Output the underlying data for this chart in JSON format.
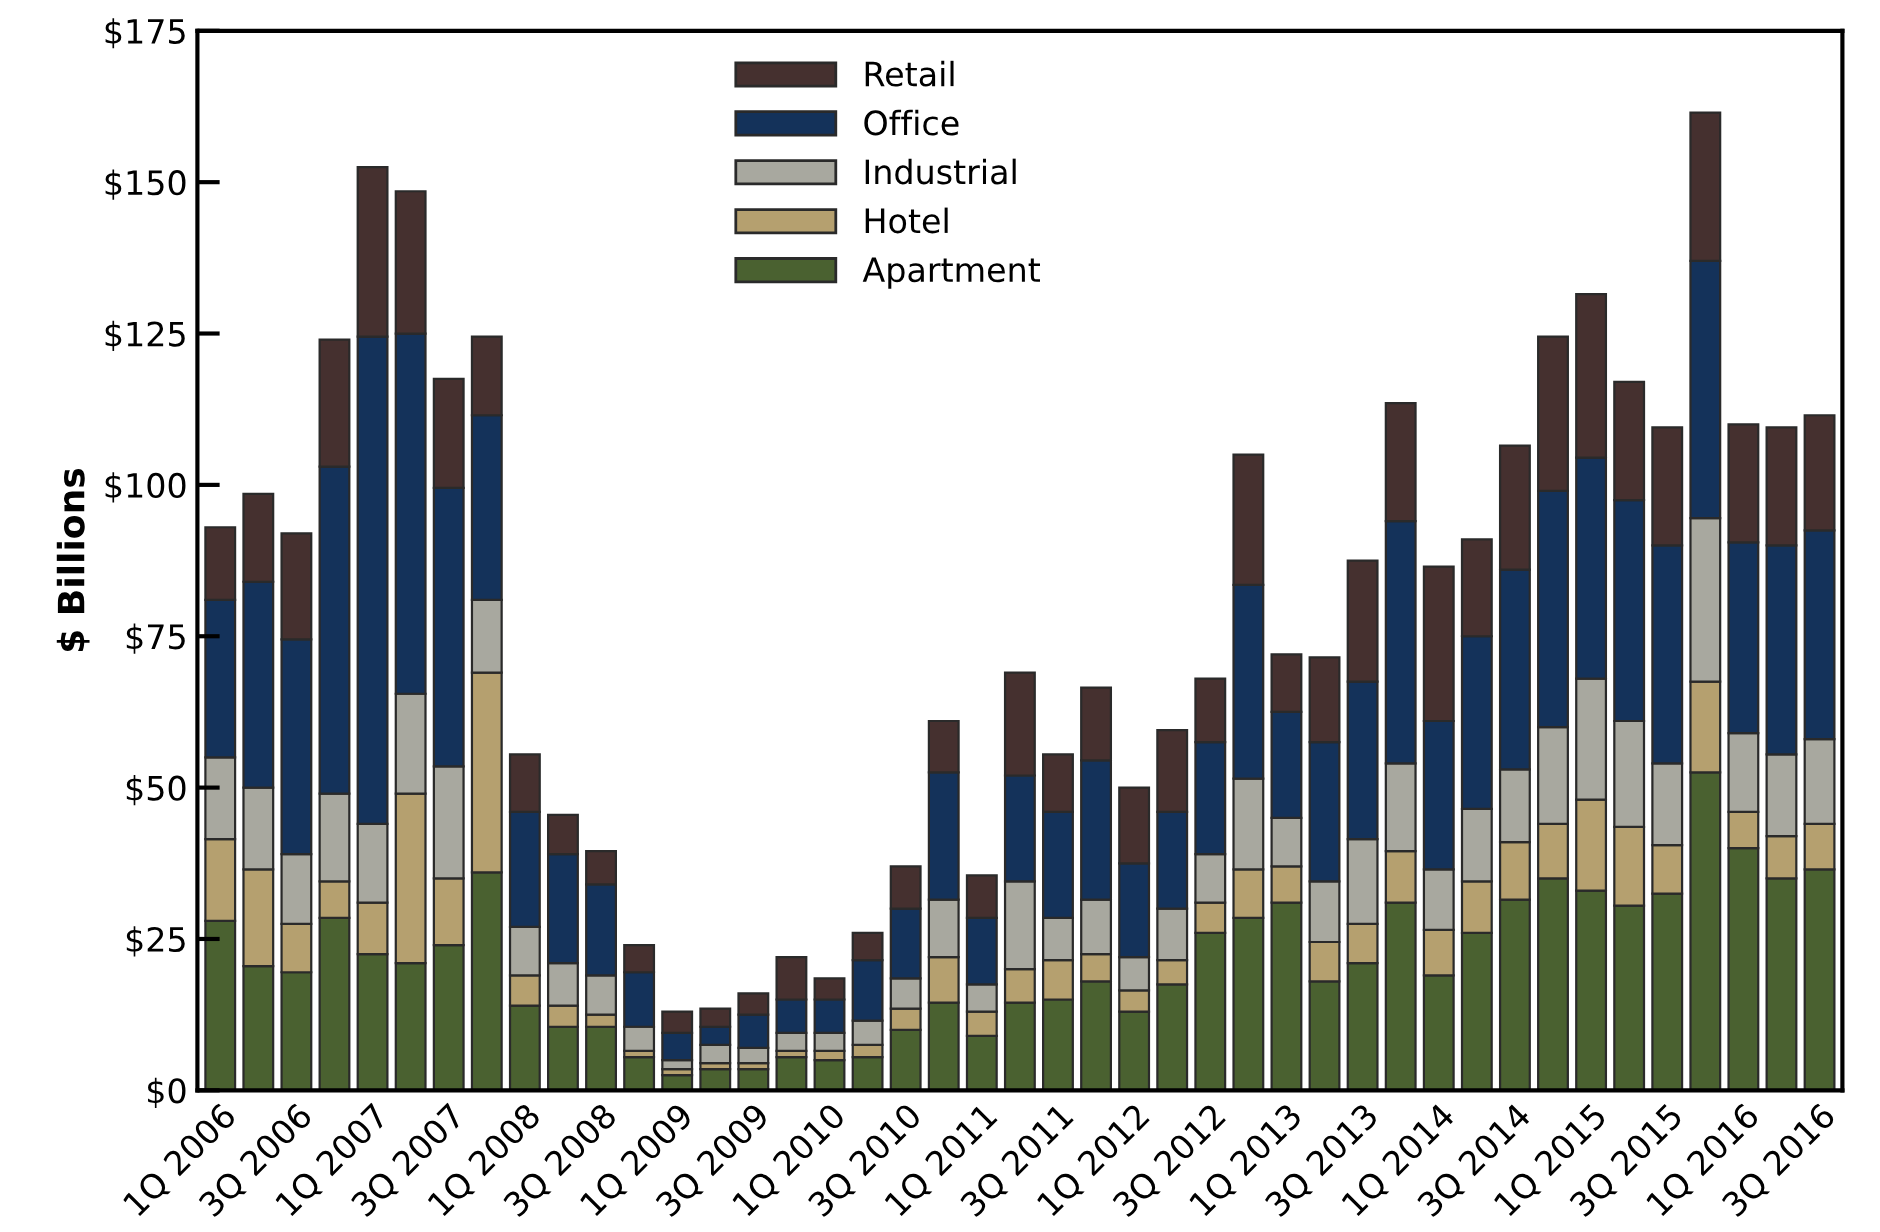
{
  "chart_data": {
    "type": "bar",
    "stacked": true,
    "ylabel": "$ Billions",
    "legend": "top",
    "categories": [
      "1Q 2006",
      null,
      "3Q 2006",
      null,
      "1Q 2007",
      null,
      "3Q 2007",
      null,
      "1Q 2008",
      null,
      "3Q 2008",
      null,
      "1Q 2009",
      null,
      "3Q 2009",
      null,
      "1Q 2010",
      null,
      "3Q 2010",
      null,
      "1Q 2011",
      null,
      "3Q 2011",
      null,
      "1Q 2012",
      null,
      "3Q 2012",
      null,
      "1Q 2013",
      null,
      "3Q 2013",
      null,
      "1Q 2014",
      null,
      "3Q 2014",
      null,
      "1Q 2015",
      null,
      "3Q 2015",
      null,
      "1Q 2016",
      null,
      "3Q 2016"
    ],
    "ylim": [
      0,
      175
    ],
    "yticks": [
      {
        "value": 0,
        "label": "$0"
      },
      {
        "value": 25,
        "label": "$25"
      },
      {
        "value": 50,
        "label": "$50"
      },
      {
        "value": 75,
        "label": "$75"
      },
      {
        "value": 100,
        "label": "$100"
      },
      {
        "value": 125,
        "label": "$125"
      },
      {
        "value": 150,
        "label": "$150"
      },
      {
        "value": 175,
        "label": "$175"
      }
    ],
    "series": [
      {
        "name": "Apartment",
        "color": "#4a6130",
        "values": [
          28,
          20.5,
          19.5,
          28.5,
          22.5,
          21,
          24,
          36,
          14,
          10.5,
          10.5,
          5.5,
          2.5,
          3.5,
          3.5,
          5.5,
          5,
          5.5,
          10,
          14.5,
          9,
          14.5,
          15,
          18,
          13,
          17.5,
          26,
          28.5,
          31,
          18,
          21,
          31,
          19,
          26,
          31.5,
          35,
          33,
          30.5,
          32.5,
          52.5,
          40,
          35,
          36.5
        ]
      },
      {
        "name": "Hotel",
        "color": "#b5a06f",
        "values": [
          13.5,
          16,
          8,
          6,
          8.5,
          28,
          11,
          33,
          5,
          3.5,
          2,
          1,
          1,
          1,
          1,
          1,
          1.5,
          2,
          3.5,
          7.5,
          4,
          5.5,
          6.5,
          4.5,
          3.5,
          4,
          5,
          8,
          6,
          6.5,
          6.5,
          8.5,
          7.5,
          8.5,
          9.5,
          9,
          15,
          13,
          8,
          15,
          6,
          7,
          7.5
        ]
      },
      {
        "name": "Industrial",
        "color": "#a8a89f",
        "values": [
          13.5,
          13.5,
          11.5,
          14.5,
          13,
          16.5,
          18.5,
          12,
          8,
          7,
          6.5,
          4,
          1.5,
          3,
          2.5,
          3,
          3,
          4,
          5,
          9.5,
          4.5,
          14.5,
          7,
          9,
          5.5,
          8.5,
          8,
          15,
          8,
          10,
          14,
          14.5,
          10,
          12,
          12,
          16,
          20,
          17.5,
          13.5,
          27,
          13,
          13.5,
          14
        ]
      },
      {
        "name": "Office",
        "color": "#14325a",
        "values": [
          26,
          34,
          35.5,
          54,
          80.5,
          59.5,
          46,
          30.5,
          19,
          18,
          15,
          9,
          4.5,
          3,
          5.5,
          5.5,
          5.5,
          10,
          11.5,
          21,
          11,
          17.5,
          17.5,
          23,
          15.5,
          16,
          18.5,
          32,
          17.5,
          23,
          26,
          40,
          24.5,
          28.5,
          33,
          39,
          36.5,
          36.5,
          36,
          42.5,
          31.5,
          34.5,
          34.5
        ]
      },
      {
        "name": "Retail",
        "color": "#45302f",
        "values": [
          12,
          14.5,
          17.5,
          21,
          28,
          23.5,
          18,
          13,
          9.5,
          6.5,
          5.5,
          4.5,
          3.5,
          3,
          3.5,
          7,
          3.5,
          4.5,
          7,
          8.5,
          7,
          17,
          9.5,
          12,
          12.5,
          13.5,
          10.5,
          21.5,
          9.5,
          14,
          20,
          19.5,
          25.5,
          16,
          20.5,
          25.5,
          27,
          19.5,
          19.5,
          24.5,
          19.5,
          19.5,
          19
        ]
      }
    ]
  }
}
